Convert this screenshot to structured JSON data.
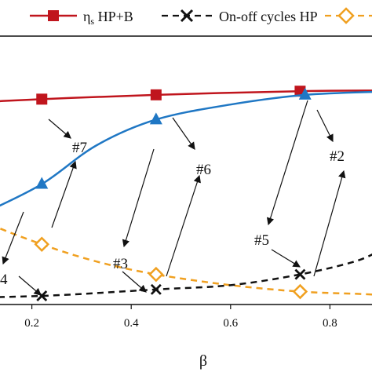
{
  "chart_data": {
    "type": "line",
    "title": "",
    "xlabel": "β",
    "ylabel": "",
    "xlim": [
      0.0,
      0.9
    ],
    "x_ticks": [
      "0.2",
      "0.4",
      "0.6",
      "0.8"
    ],
    "grid": false,
    "legend": {
      "position": "top",
      "entries": [
        {
          "label_main": "η",
          "label_sub": "s",
          "label_rest": " HP+B",
          "series": "eta_s"
        },
        {
          "label_main": "On-off cycles HP",
          "label_sub": "",
          "label_rest": "",
          "series": "onoff"
        },
        {
          "label_main": "",
          "label_sub": "",
          "label_rest": "",
          "series": "orange"
        }
      ]
    },
    "series": [
      {
        "id": "eta_s",
        "color": "#c0151d",
        "dash": "solid",
        "marker": "square",
        "x": [
          0.0,
          0.22,
          0.45,
          0.74,
          0.9
        ],
        "y": [
          0.93,
          0.955,
          0.975,
          0.992,
          0.995
        ],
        "marker_x": [
          0.22,
          0.45,
          0.74
        ]
      },
      {
        "id": "blue",
        "color": "#1f77c4",
        "dash": "solid",
        "marker": "triangle",
        "x": [
          0.0,
          0.1,
          0.22,
          0.33,
          0.45,
          0.6,
          0.75,
          0.9
        ],
        "y": [
          0.3,
          0.42,
          0.56,
          0.74,
          0.86,
          0.93,
          0.975,
          0.99
        ],
        "marker_x": [
          0.22,
          0.45,
          0.75
        ]
      },
      {
        "id": "orange",
        "color": "#f0a020",
        "dash": "dashed",
        "marker": "diamond",
        "x": [
          0.0,
          0.1,
          0.22,
          0.33,
          0.45,
          0.6,
          0.74,
          0.85,
          0.9
        ],
        "y": [
          0.52,
          0.39,
          0.28,
          0.2,
          0.14,
          0.09,
          0.06,
          0.05,
          0.045
        ],
        "marker_x": [
          0.22,
          0.45,
          0.74
        ]
      },
      {
        "id": "onoff",
        "color": "#111111",
        "dash": "dashed",
        "marker": "x",
        "x": [
          0.0,
          0.22,
          0.45,
          0.6,
          0.74,
          0.85,
          0.9
        ],
        "y": [
          0.03,
          0.04,
          0.07,
          0.09,
          0.14,
          0.2,
          0.25
        ],
        "marker_x": [
          0.22,
          0.45,
          0.74
        ]
      }
    ],
    "annotations": [
      "#7",
      "#6",
      "#2",
      "#3",
      "#5",
      "4"
    ]
  }
}
